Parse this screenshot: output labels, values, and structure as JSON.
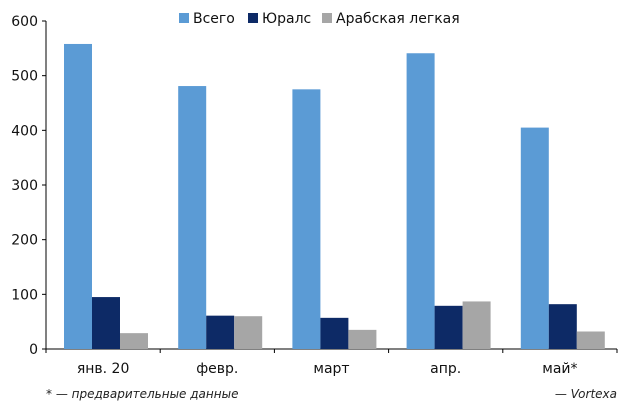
{
  "chart_data": {
    "type": "bar",
    "categories": [
      "янв. 20",
      "февр.",
      "март",
      "апр.",
      "май*"
    ],
    "series": [
      {
        "name": "Всего",
        "values": [
          558,
          481,
          475,
          541,
          405
        ],
        "color": "#5b9bd5"
      },
      {
        "name": "Юралс",
        "values": [
          95,
          61,
          57,
          79,
          82
        ],
        "color": "#0d2a66"
      },
      {
        "name": "Арабская легкая",
        "values": [
          29,
          60,
          35,
          87,
          32
        ],
        "color": "#a6a6a6"
      }
    ],
    "ylim": [
      0,
      600
    ],
    "yticks": [
      0,
      100,
      200,
      300,
      400,
      500,
      600
    ],
    "grid": false,
    "legend": "top"
  },
  "footnote": "* — предварительные данные",
  "source": "— Vortexa"
}
